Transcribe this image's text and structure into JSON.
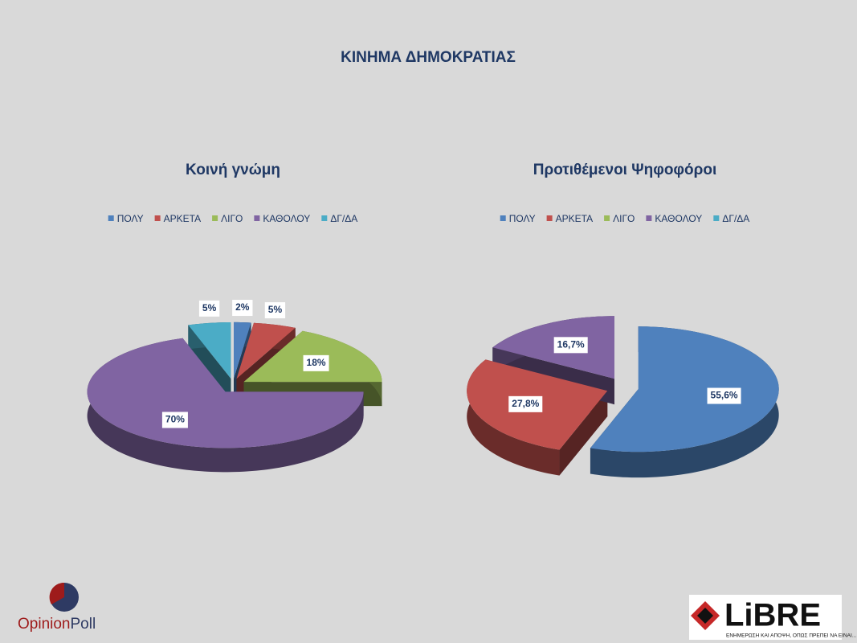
{
  "title": "ΚΙΝΗΜΑ ΔΗΜΟΚΡΑΤΙΑΣ",
  "chart_data": [
    {
      "type": "pie3d",
      "title": "Κοινή γνώμη",
      "categories": [
        "ΠΟΛΥ",
        "ΑΡΚΕΤΑ",
        "ΛΙΓΟ",
        "ΚΑΘΟΛΟΥ",
        "ΔΓ/ΔΑ"
      ],
      "values": [
        2,
        5,
        18,
        70,
        5
      ],
      "value_labels": [
        "2%",
        "5%",
        "18%",
        "70%",
        "5%"
      ],
      "colors": [
        "#4f81bd",
        "#c0504d",
        "#9bbb59",
        "#8064a2",
        "#4bacc6"
      ],
      "legend": "top"
    },
    {
      "type": "pie3d",
      "title": "Προτιθέμενοι Ψηφοφόροι",
      "categories": [
        "ΠΟΛΥ",
        "ΑΡΚΕΤΑ",
        "ΛΙΓΟ",
        "ΚΑΘΟΛΟΥ",
        "ΔΓ/ΔΑ"
      ],
      "values": [
        55.6,
        27.8,
        null,
        16.7,
        null
      ],
      "value_labels": [
        "55,6%",
        "27,8%",
        null,
        "16,7%",
        null
      ],
      "colors": [
        "#4f81bd",
        "#c0504d",
        "#9bbb59",
        "#8064a2",
        "#4bacc6"
      ],
      "legend": "top"
    }
  ],
  "logos": {
    "opinion": "Opinion",
    "poll": "Poll",
    "libre": "LiBRE",
    "libre_tagline": "ΕΝΗΜΕΡΩΣΗ ΚΑΙ ΑΠΟΨΗ, ΟΠΩΣ ΠΡΕΠΕΙ ΝΑ ΕΙΝΑΙ..."
  }
}
